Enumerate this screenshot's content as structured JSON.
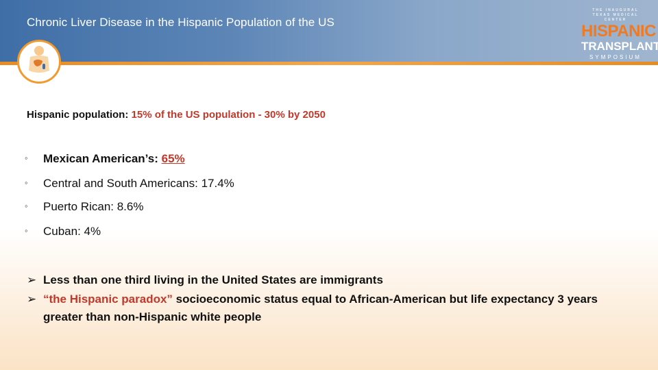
{
  "header": {
    "title": "Chronic Liver Disease in the Hispanic Population of the US"
  },
  "brand": {
    "line1": "THE INAUGURAL",
    "line2": "TEXAS MEDICAL CENTER",
    "line3": "HISPANIC",
    "line4": "TRANSPLANT",
    "line5": "SYMPOSIUM"
  },
  "logo": {
    "icon": "liver-anatomy-icon"
  },
  "intro": {
    "label": "Hispanic population:",
    "value": "15% of the US population - 30% by 2050"
  },
  "bullets": [
    {
      "label": "Mexican American’s:",
      "value": "65%"
    },
    {
      "text": "Central and South Americans: 17.4%"
    },
    {
      "text": "Puerto Rican: 8.6%"
    },
    {
      "text": "Cuban: 4%"
    }
  ],
  "points": [
    {
      "text": "Less than one third living in the United States are immigrants"
    },
    {
      "highlight": "“the Hispanic paradox”",
      "text": " socioeconomic status equal to African-American but life expectancy 3 years greater than non-Hispanic white people"
    }
  ],
  "colors": {
    "header": "#3f6ea6",
    "accent_orange": "#f07a22",
    "highlight_red": "#c0392b"
  }
}
